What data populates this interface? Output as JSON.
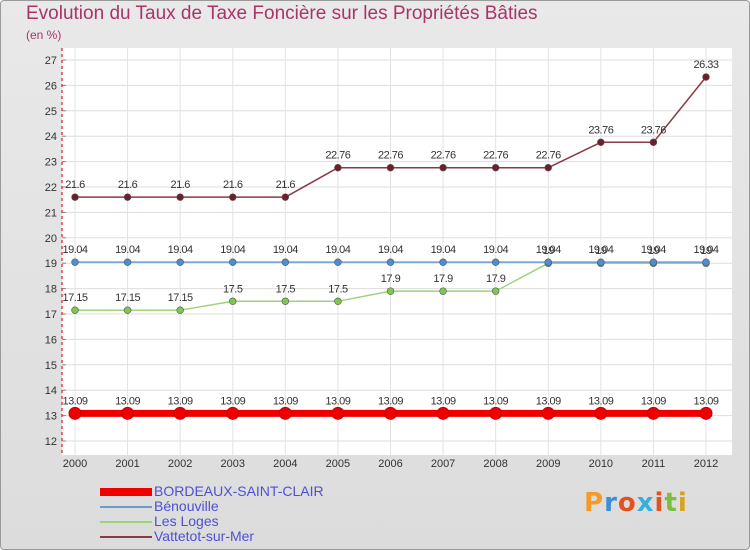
{
  "header": {
    "title": "Evolution du Taux de Taxe Foncière sur les Propriétés Bâties",
    "subtitle": "(en %)"
  },
  "chart_data": {
    "type": "line",
    "title": "Evolution du Taux de Taxe Foncière sur les Propriétés Bâties",
    "unit": "(en %)",
    "x": [
      "2000",
      "2001",
      "2002",
      "2003",
      "2004",
      "2005",
      "2006",
      "2007",
      "2008",
      "2009",
      "2010",
      "2011",
      "2012"
    ],
    "ylim": [
      12,
      27
    ],
    "yticks": [
      12,
      13,
      14,
      15,
      16,
      17,
      18,
      19,
      20,
      21,
      22,
      23,
      24,
      25,
      26,
      27
    ],
    "grid": true,
    "legend_position": "bottom-left",
    "series": [
      {
        "name": "BORDEAUX-SAINT-CLAIR",
        "color": "#ee0000",
        "marker": "#ee0000",
        "bold": true,
        "values": [
          13.09,
          13.09,
          13.09,
          13.09,
          13.09,
          13.09,
          13.09,
          13.09,
          13.09,
          13.09,
          13.09,
          13.09,
          13.09
        ],
        "labels": [
          "13.09",
          "13.09",
          "13.09",
          "13.09",
          "13.09",
          "13.09",
          "13.09",
          "13.09",
          "13.09",
          "13.09",
          "13.09",
          "13.09",
          "13.09"
        ]
      },
      {
        "name": "Bénouville",
        "color": "#6d9ccc",
        "marker": "#4d8ed0",
        "bold": false,
        "values": [
          19.04,
          19.04,
          19.04,
          19.04,
          19.04,
          19.04,
          19.04,
          19.04,
          19.04,
          19.04,
          19.04,
          19.04,
          19.04
        ],
        "labels": [
          "19.04",
          "19.04",
          "19.04",
          "19.04",
          "19.04",
          "19.04",
          "19.04",
          "19.04",
          "19.04",
          "19.04",
          "19.04",
          "19.04",
          "19.04"
        ]
      },
      {
        "name": "Les Loges",
        "color": "#9ed37a",
        "marker": "#7ec850",
        "bold": false,
        "values": [
          17.15,
          17.15,
          17.15,
          17.5,
          17.5,
          17.5,
          17.9,
          17.9,
          17.9,
          19,
          19,
          19,
          19
        ],
        "labels": [
          "17.15",
          "17.15",
          "17.15",
          "17.5",
          "17.5",
          "17.5",
          "17.9",
          "17.9",
          "17.9",
          "19",
          "19",
          "19",
          "19"
        ]
      },
      {
        "name": "Vattetot-sur-Mer",
        "color": "#8a3a44",
        "marker": "#6e1f2a",
        "bold": false,
        "values": [
          21.6,
          21.6,
          21.6,
          21.6,
          21.6,
          22.76,
          22.76,
          22.76,
          22.76,
          22.76,
          23.76,
          23.76,
          26.33
        ],
        "labels": [
          "21.6",
          "21.6",
          "21.6",
          "21.6",
          "21.6",
          "22.76",
          "22.76",
          "22.76",
          "22.76",
          "22.76",
          "23.76",
          "23.76",
          "26.33"
        ]
      }
    ]
  },
  "logo": {
    "text": "Proxiti",
    "colors": [
      "#f39a2a",
      "#3c8fd6",
      "#e2521f",
      "#35b0e0",
      "#e2521f",
      "#7cbf3c",
      "#d8a21a"
    ]
  }
}
